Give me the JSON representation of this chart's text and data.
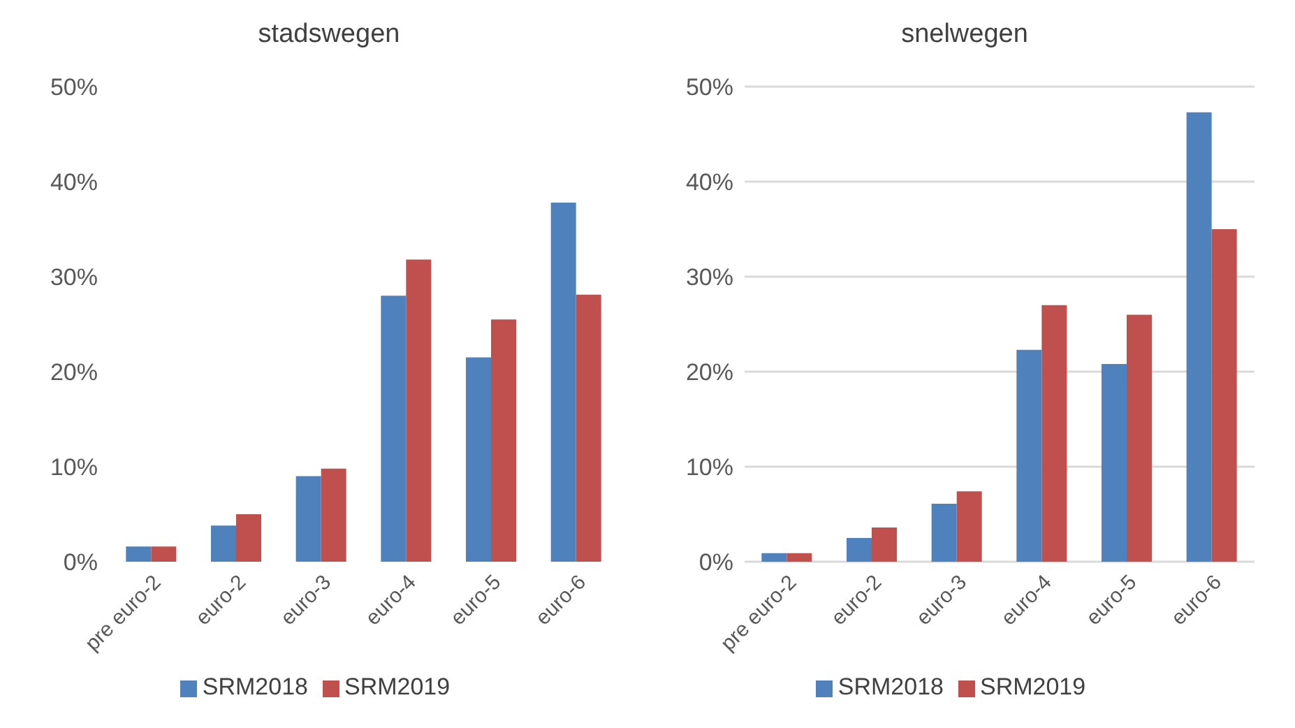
{
  "chart_data": [
    {
      "type": "bar",
      "title": "stadswegen",
      "categories": [
        "pre euro-2",
        "euro-2",
        "euro-3",
        "euro-4",
        "euro-5",
        "euro-6"
      ],
      "series": [
        {
          "name": "SRM2018",
          "color": "#4f81bd",
          "values": [
            1.6,
            3.8,
            9.0,
            28.0,
            21.5,
            37.8
          ]
        },
        {
          "name": "SRM2019",
          "color": "#c0504d",
          "values": [
            1.6,
            5.0,
            9.8,
            31.8,
            25.5,
            28.1
          ]
        }
      ],
      "ylim": [
        0,
        50
      ],
      "yticks": [
        {
          "value": 0,
          "label": "0%"
        },
        {
          "value": 10,
          "label": "10%"
        },
        {
          "value": 20,
          "label": "20%"
        },
        {
          "value": 30,
          "label": "30%"
        },
        {
          "value": 40,
          "label": "40%"
        },
        {
          "value": 50,
          "label": "50%"
        }
      ],
      "grid": false,
      "legend": "bottom"
    },
    {
      "type": "bar",
      "title": "snelwegen",
      "categories": [
        "pre euro-2",
        "euro-2",
        "euro-3",
        "euro-4",
        "euro-5",
        "euro-6"
      ],
      "series": [
        {
          "name": "SRM2018",
          "color": "#4f81bd",
          "values": [
            0.9,
            2.5,
            6.1,
            22.3,
            20.8,
            47.3
          ]
        },
        {
          "name": "SRM2019",
          "color": "#c0504d",
          "values": [
            0.9,
            3.6,
            7.4,
            27.0,
            26.0,
            35.0
          ]
        }
      ],
      "ylim": [
        0,
        50
      ],
      "yticks": [
        {
          "value": 0,
          "label": "0%"
        },
        {
          "value": 10,
          "label": "10%"
        },
        {
          "value": 20,
          "label": "20%"
        },
        {
          "value": 30,
          "label": "30%"
        },
        {
          "value": 40,
          "label": "40%"
        },
        {
          "value": 50,
          "label": "50%"
        }
      ],
      "grid": "y",
      "legend": "bottom"
    }
  ]
}
